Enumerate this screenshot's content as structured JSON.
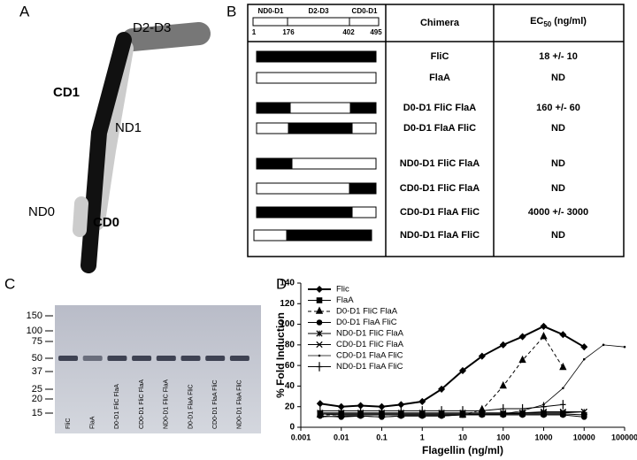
{
  "panel_a": {
    "letter": "A",
    "labels": [
      "D2-D3",
      "CD1",
      "ND1",
      "ND0",
      "CD0"
    ]
  },
  "panel_b": {
    "letter": "B",
    "schematic": {
      "domains": [
        "ND0-D1",
        "D2-D3",
        "CD0-D1"
      ],
      "positions": [
        "1",
        "176",
        "402",
        "495"
      ]
    },
    "header": {
      "chimera": "Chimera",
      "ec_main": "EC",
      "ec_sub": "50",
      "ec_unit": "(ng/ml)"
    },
    "rows": [
      {
        "chimera": "FliC",
        "ec50": "18 +/- 10"
      },
      {
        "chimera": "FlaA",
        "ec50": "ND"
      },
      {
        "chimera": "D0-D1 FliC FlaA",
        "ec50": "160 +/- 60"
      },
      {
        "chimera": "D0-D1 FlaA FliC",
        "ec50": "ND"
      },
      {
        "chimera": "ND0-D1 FliC FlaA",
        "ec50": "ND"
      },
      {
        "chimera": "CD0-D1 FliC FlaA",
        "ec50": "ND"
      },
      {
        "chimera": "CD0-D1 FlaA FliC",
        "ec50": "4000 +/- 3000"
      },
      {
        "chimera": "ND0-D1 FlaA FliC",
        "ec50": "ND"
      }
    ]
  },
  "panel_c": {
    "letter": "C",
    "markers": [
      "150",
      "100",
      "75",
      "50",
      "37",
      "25",
      "20",
      "15"
    ],
    "lanes": [
      "FliC",
      "FlaA",
      "D0-D1 FliC FlaA",
      "CD0-D1 FliC FlaA",
      "ND0-D1 FliC FlaA",
      "D0-D1 FlaA FliC",
      "CD0-D1 FlaA FliC",
      "ND0-D1 FlaA FliC"
    ]
  },
  "chart_data": {
    "type": "line",
    "panel_letter": "D",
    "x_label": "Flagellin (ng/ml)",
    "y_label": "% Fold Induction",
    "log_x": true,
    "xlim": [
      0.001,
      100000
    ],
    "ylim": [
      0,
      140
    ],
    "xticks": [
      0.001,
      0.01,
      0.1,
      1,
      10,
      100,
      1000,
      10000,
      100000
    ],
    "yticks": [
      0,
      20,
      40,
      60,
      80,
      100,
      120,
      140
    ],
    "legend": "top-left",
    "x": [
      0.003,
      0.01,
      0.03,
      0.1,
      0.3,
      1,
      3,
      10,
      30,
      100,
      300,
      1000,
      3000,
      10000,
      30000,
      100000
    ],
    "series": [
      {
        "name": "Flic",
        "color": "#000000",
        "marker": "diamond",
        "dashed": false,
        "values": [
          23,
          20,
          21,
          20,
          22,
          25,
          37,
          55,
          69,
          80,
          88,
          98,
          90,
          78,
          null,
          null
        ]
      },
      {
        "name": "FlaA",
        "color": "#000000",
        "marker": "square",
        "dashed": false,
        "values": [
          13,
          12,
          12,
          12,
          12,
          12,
          12,
          12,
          13,
          13,
          13,
          13,
          13,
          12,
          null,
          null
        ]
      },
      {
        "name": "D0-D1 FliC FlaA",
        "color": "#000000",
        "marker": "triangle",
        "dashed": true,
        "values": [
          12,
          12,
          12,
          12,
          12,
          12,
          12,
          12,
          17,
          40,
          65,
          88,
          58,
          null,
          null,
          null
        ]
      },
      {
        "name": "D0-D1 FlaA FliC",
        "color": "#000000",
        "marker": "circle",
        "dashed": false,
        "values": [
          11,
          10,
          11,
          10,
          11,
          11,
          11,
          12,
          12,
          12,
          12,
          12,
          12,
          10,
          null,
          null
        ]
      },
      {
        "name": "ND0-D1 FliC FlaA",
        "color": "#000000",
        "marker": "star",
        "dashed": false,
        "values": [
          13,
          13,
          13,
          13,
          13,
          13,
          13,
          13,
          13,
          13,
          14,
          14,
          14,
          15,
          null,
          null
        ]
      },
      {
        "name": "CD0-D1 FliC FlaA",
        "color": "#000000",
        "marker": "x",
        "dashed": false,
        "values": [
          14,
          14,
          14,
          14,
          14,
          14,
          14,
          14,
          14,
          14,
          14,
          15,
          15,
          15,
          null,
          null
        ]
      },
      {
        "name": "CD0-D1 FlaA FliC",
        "color": "#000000",
        "marker": "none",
        "dashed": false,
        "values": [
          10,
          11,
          11,
          10,
          11,
          11,
          11,
          12,
          12,
          13,
          16,
          22,
          38,
          66,
          80,
          78
        ]
      },
      {
        "name": "ND0-D1 FlaA FliC",
        "color": "#000000",
        "marker": "plus",
        "dashed": false,
        "values": [
          16,
          16,
          16,
          16,
          16,
          16,
          16,
          16,
          16,
          18,
          18,
          20,
          22,
          null,
          null,
          null
        ]
      }
    ]
  }
}
